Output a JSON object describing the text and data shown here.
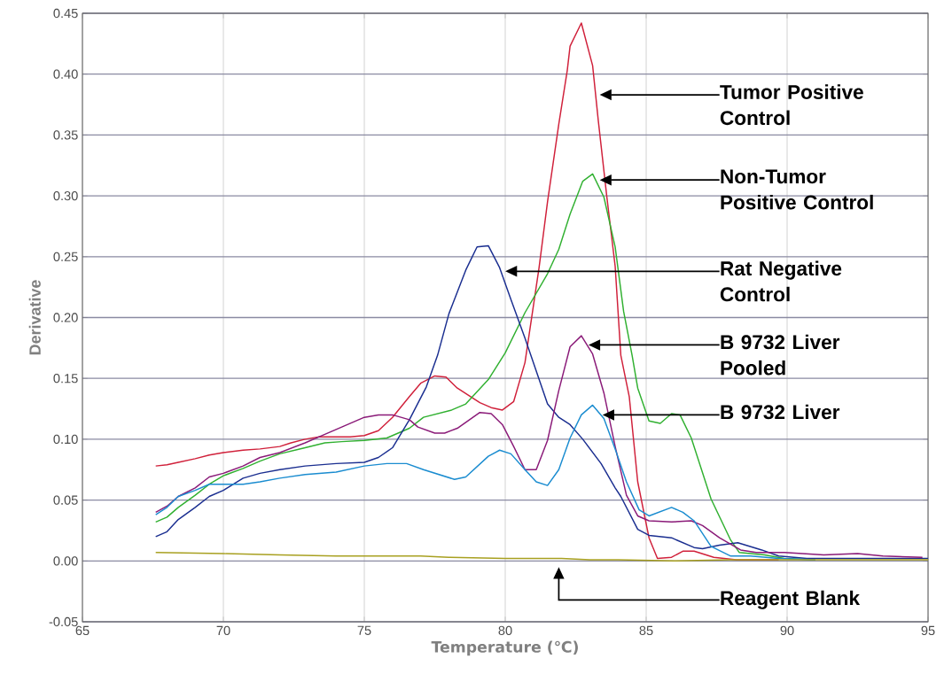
{
  "chart_data": {
    "type": "line",
    "xlabel": "Temperature (℃)",
    "ylabel": "Derivative",
    "xlim": [
      65,
      95
    ],
    "ylim": [
      -0.05,
      0.45
    ],
    "xticks": [
      65,
      70,
      75,
      80,
      85,
      90,
      95
    ],
    "yticks": [
      {
        "value": -0.05,
        "label": "-0.05"
      },
      {
        "value": 0,
        "label": "0.00"
      },
      {
        "value": 0.05,
        "label": "0.05"
      },
      {
        "value": 0.1,
        "label": "0.10"
      },
      {
        "value": 0.15,
        "label": "0.15"
      },
      {
        "value": 0.2,
        "label": "0.20"
      },
      {
        "value": 0.25,
        "label": "0.25"
      },
      {
        "value": 0.3,
        "label": "0.30"
      },
      {
        "value": 0.35,
        "label": "0.35"
      },
      {
        "value": 0.4,
        "label": "0.40"
      },
      {
        "value": 0.45,
        "label": "0.45"
      }
    ],
    "grid": true,
    "marker": "none",
    "series": [
      {
        "color": "#d0203a",
        "x": [
          67.6,
          68.0,
          68.4,
          69.0,
          69.5,
          70.0,
          70.7,
          71.3,
          72.0,
          72.4,
          72.9,
          73.4,
          74.0,
          74.5,
          75.0,
          75.5,
          76.0,
          76.6,
          77.0,
          77.5,
          77.9,
          78.3,
          79.1,
          79.5,
          79.9,
          80.3,
          80.7,
          81.2,
          81.5,
          81.9,
          82.2,
          82.3,
          82.7,
          83.1,
          83.3,
          83.6,
          83.9,
          84.1,
          84.4,
          84.7,
          85.1,
          85.4,
          85.9,
          86.3,
          86.7,
          87.4,
          88.2,
          89.7
        ],
        "values": [
          0.078,
          0.079,
          0.081,
          0.084,
          0.087,
          0.089,
          0.091,
          0.092,
          0.094,
          0.097,
          0.1,
          0.102,
          0.102,
          0.102,
          0.103,
          0.107,
          0.118,
          0.135,
          0.146,
          0.152,
          0.151,
          0.142,
          0.13,
          0.126,
          0.124,
          0.131,
          0.163,
          0.241,
          0.295,
          0.359,
          0.403,
          0.423,
          0.442,
          0.407,
          0.362,
          0.3,
          0.242,
          0.169,
          0.135,
          0.065,
          0.019,
          0.002,
          0.003,
          0.008,
          0.008,
          0.003,
          0.001,
          0.001
        ]
      },
      {
        "color": "#30b030",
        "x": [
          67.6,
          68.0,
          68.4,
          69.0,
          69.5,
          70.0,
          70.7,
          71.3,
          72.0,
          72.9,
          73.6,
          74.2,
          75.0,
          75.8,
          76.6,
          77.1,
          78.1,
          78.6,
          79.4,
          80.0,
          80.7,
          81.5,
          81.9,
          82.3,
          82.75,
          83.1,
          83.5,
          83.9,
          84.2,
          84.5,
          84.7,
          85.1,
          85.5,
          85.9,
          86.2,
          86.6,
          87.3,
          88.0,
          88.3,
          89.2,
          89.9,
          91.0
        ],
        "values": [
          0.032,
          0.036,
          0.044,
          0.054,
          0.063,
          0.07,
          0.076,
          0.082,
          0.088,
          0.093,
          0.097,
          0.098,
          0.099,
          0.101,
          0.109,
          0.118,
          0.124,
          0.129,
          0.149,
          0.171,
          0.204,
          0.236,
          0.256,
          0.285,
          0.312,
          0.318,
          0.299,
          0.258,
          0.205,
          0.169,
          0.142,
          0.115,
          0.113,
          0.121,
          0.12,
          0.101,
          0.051,
          0.017,
          0.007,
          0.005,
          0.002,
          0.001
        ]
      },
      {
        "color": "#1a2e90",
        "x": [
          67.6,
          68.0,
          68.4,
          69.0,
          69.5,
          70.0,
          70.7,
          71.3,
          72.0,
          72.9,
          74.0,
          75.0,
          75.5,
          76.0,
          76.6,
          77.2,
          77.6,
          78.0,
          78.6,
          79.0,
          79.4,
          79.8,
          80.2,
          80.7,
          81.5,
          81.9,
          82.3,
          82.75,
          83.4,
          83.9,
          84.1,
          84.7,
          85.1,
          85.9,
          86.7,
          87.0,
          87.6,
          88.25,
          89.1,
          89.7,
          90.7,
          93.0,
          95.0
        ],
        "values": [
          0.02,
          0.024,
          0.034,
          0.044,
          0.053,
          0.058,
          0.068,
          0.072,
          0.075,
          0.078,
          0.08,
          0.081,
          0.085,
          0.093,
          0.116,
          0.143,
          0.169,
          0.203,
          0.239,
          0.258,
          0.259,
          0.241,
          0.215,
          0.183,
          0.129,
          0.118,
          0.112,
          0.1,
          0.08,
          0.06,
          0.053,
          0.026,
          0.021,
          0.019,
          0.011,
          0.01,
          0.013,
          0.015,
          0.009,
          0.004,
          0.002,
          0.002,
          0.002
        ]
      },
      {
        "color": "#8a1a78",
        "x": [
          67.6,
          68.0,
          68.4,
          69.0,
          69.5,
          70.0,
          70.7,
          71.3,
          72.0,
          72.9,
          73.4,
          74.0,
          75.0,
          75.5,
          76.0,
          76.6,
          76.9,
          77.5,
          77.85,
          78.3,
          79.1,
          79.5,
          79.9,
          80.3,
          80.7,
          81.1,
          81.5,
          81.9,
          82.3,
          82.7,
          83.1,
          83.5,
          83.9,
          84.3,
          84.7,
          85.1,
          85.9,
          86.6,
          87.0,
          87.6,
          88.35,
          88.9,
          89.9,
          91.3,
          92.5,
          93.4,
          94.8
        ],
        "values": [
          0.04,
          0.045,
          0.053,
          0.06,
          0.069,
          0.072,
          0.078,
          0.085,
          0.089,
          0.097,
          0.102,
          0.108,
          0.118,
          0.12,
          0.12,
          0.116,
          0.11,
          0.105,
          0.105,
          0.109,
          0.122,
          0.121,
          0.112,
          0.094,
          0.075,
          0.075,
          0.099,
          0.14,
          0.176,
          0.185,
          0.17,
          0.138,
          0.094,
          0.054,
          0.037,
          0.033,
          0.032,
          0.033,
          0.029,
          0.019,
          0.009,
          0.007,
          0.007,
          0.005,
          0.006,
          0.004,
          0.003
        ]
      },
      {
        "color": "#1a8cd0",
        "x": [
          67.6,
          68.0,
          68.4,
          69.0,
          69.5,
          70.0,
          70.7,
          71.3,
          72.0,
          72.9,
          74.0,
          75.0,
          75.8,
          76.5,
          77.1,
          78.2,
          78.6,
          79.4,
          79.8,
          80.2,
          80.7,
          81.1,
          81.5,
          81.9,
          82.3,
          82.7,
          83.1,
          83.5,
          83.9,
          84.3,
          84.75,
          85.1,
          85.9,
          86.3,
          86.7,
          87.3,
          88.0,
          88.7,
          89.7,
          91.0
        ],
        "values": [
          0.038,
          0.044,
          0.053,
          0.058,
          0.063,
          0.063,
          0.063,
          0.065,
          0.068,
          0.071,
          0.073,
          0.078,
          0.08,
          0.08,
          0.075,
          0.067,
          0.069,
          0.086,
          0.091,
          0.088,
          0.075,
          0.065,
          0.062,
          0.075,
          0.101,
          0.12,
          0.128,
          0.117,
          0.092,
          0.065,
          0.042,
          0.037,
          0.044,
          0.04,
          0.033,
          0.012,
          0.004,
          0.004,
          0.002,
          0.001
        ]
      },
      {
        "color": "#a8a020",
        "x": [
          67.6,
          70.0,
          72.0,
          74.0,
          75.0,
          76.0,
          77.0,
          78.0,
          80.0,
          82.0,
          83.0,
          84.0,
          86.0,
          88.0,
          90.0,
          92.0,
          95.0
        ],
        "values": [
          0.007,
          0.006,
          0.005,
          0.004,
          0.004,
          0.004,
          0.004,
          0.003,
          0.002,
          0.002,
          0.001,
          0.001,
          0.0,
          0.001,
          0.001,
          0.001,
          0.001
        ]
      }
    ],
    "annotations": [
      "Tumor Positive Control",
      "Non-Tumor Positive Control",
      "Rat Negative Control",
      "B 9732 Liver Pooled",
      "B 9732 Liver",
      "Reagent Blank"
    ]
  }
}
